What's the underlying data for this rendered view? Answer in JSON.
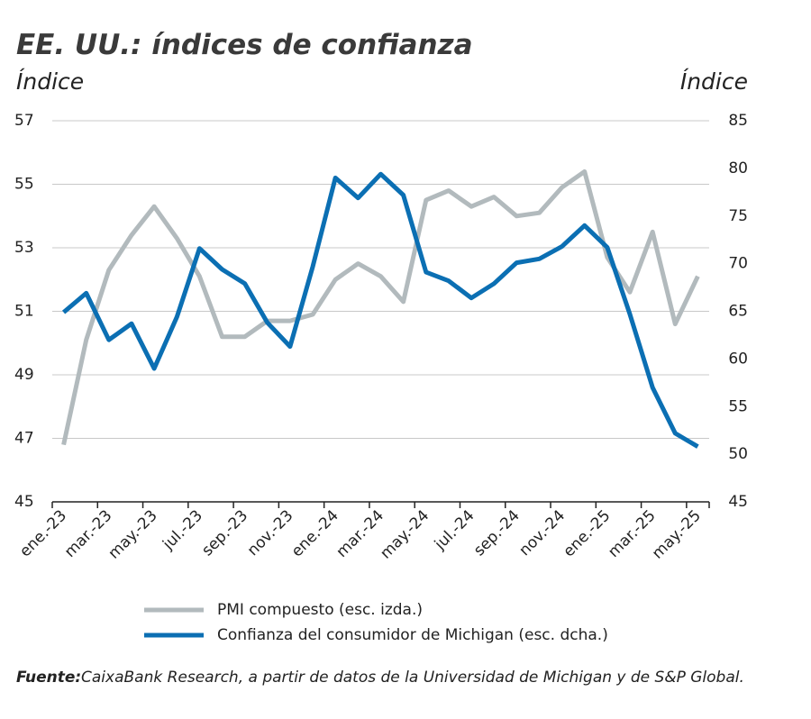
{
  "chart_data": {
    "type": "line",
    "title": "EE. UU.: índices de confianza",
    "y_label": "Índice",
    "y2_label": "Índice",
    "categories": [
      "ene.-23",
      null,
      "mar.-23",
      null,
      "may.-23",
      null,
      "jul.-23",
      null,
      "sep.-23",
      null,
      "nov.-23",
      null,
      "ene.-24",
      null,
      "mar.-24",
      null,
      "may.-24",
      null,
      "jul.-24",
      null,
      "sep.-24",
      null,
      "nov.-24",
      null,
      "ene.-25",
      null,
      "mar.-25",
      null,
      "may.-25"
    ],
    "series": [
      {
        "name": "PMI compuesto (esc. izda.)",
        "color": "#b2babd",
        "values": [
          46.8,
          50.1,
          52.3,
          53.4,
          54.3,
          53.3,
          52.1,
          50.2,
          50.2,
          50.7,
          50.7,
          50.9,
          52.0,
          52.5,
          52.1,
          51.3,
          54.5,
          54.8,
          54.3,
          54.6,
          54.0,
          54.1,
          54.9,
          55.4,
          52.7,
          51.6,
          53.5,
          50.6,
          52.1
        ]
      },
      {
        "name": "Confianza del consumidor de Michigan (esc. dcha.)",
        "color": "#0b6fb3",
        "axis": "y2",
        "values": [
          64.9,
          66.9,
          62.0,
          63.7,
          59.0,
          64.4,
          71.6,
          69.4,
          67.9,
          63.8,
          61.3,
          69.7,
          79.0,
          76.9,
          79.4,
          77.2,
          69.1,
          68.2,
          66.4,
          67.9,
          70.1,
          70.5,
          71.8,
          74.0,
          71.7,
          64.7,
          57.0,
          52.2,
          50.8
        ]
      }
    ],
    "ylim": [
      45,
      57
    ],
    "yticks": [
      45,
      47,
      49,
      51,
      53,
      55,
      57
    ],
    "y2lim": [
      45,
      85
    ],
    "y2ticks": [
      45,
      50,
      55,
      60,
      65,
      70,
      75,
      80,
      85
    ],
    "grid": true,
    "source_label": "Fuente:",
    "source": "CaixaBank Research, a partir de datos de la Universidad de Michigan y de S&P Global."
  }
}
